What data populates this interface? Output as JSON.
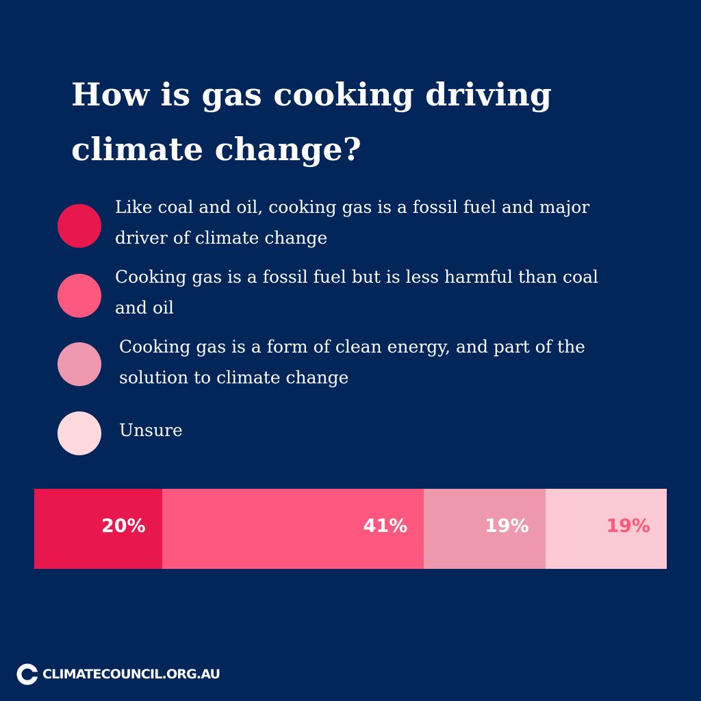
{
  "title": "How is gas cooking driving climate change?",
  "legend": [
    {
      "label": "Like coal and oil, cooking gas is a fossil fuel and major driver of climate change",
      "color": "#e8184e"
    },
    {
      "label": "Cooking gas is a fossil fuel but is less harmful than coal and oil",
      "color": "#fd5980"
    },
    {
      "label": "Cooking gas is a form of clean energy, and part of the solution to climate change",
      "color": "#ed98ad"
    },
    {
      "label": "Unsure",
      "color": "#fed9de"
    }
  ],
  "chart_data": {
    "type": "bar",
    "orientation": "horizontal-stacked-100",
    "categories": [
      "Like coal and oil, cooking gas is a fossil fuel and major driver of climate change",
      "Cooking gas is a fossil fuel but is less harmful than coal and oil",
      "Cooking gas is a form of clean energy, and part of the solution to climate change",
      "Unsure"
    ],
    "values": [
      20,
      41,
      19,
      19
    ],
    "labels": [
      "20%",
      "41%",
      "19%",
      "19%"
    ],
    "colors": [
      "#e8184e",
      "#fd5980",
      "#ed98ad",
      "#fdc9d5"
    ],
    "label_colors": [
      "#ffffff",
      "#ffffff",
      "#ffffff",
      "#fd5a79"
    ],
    "legend": "above"
  },
  "footer": {
    "text": "CLIMATECOUNCIL.ORG.AU",
    "icon": "climate-council-logo-icon"
  }
}
